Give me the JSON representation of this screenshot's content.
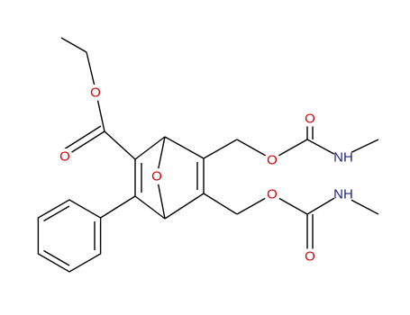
{
  "atoms": [
    {
      "label": "O"
    },
    {
      "label": "O"
    },
    {
      "label": "O"
    },
    {
      "label": "O"
    },
    {
      "label": "O"
    },
    {
      "label": "NH"
    },
    {
      "label": "O"
    },
    {
      "label": "O"
    },
    {
      "label": "NH"
    }
  ]
}
